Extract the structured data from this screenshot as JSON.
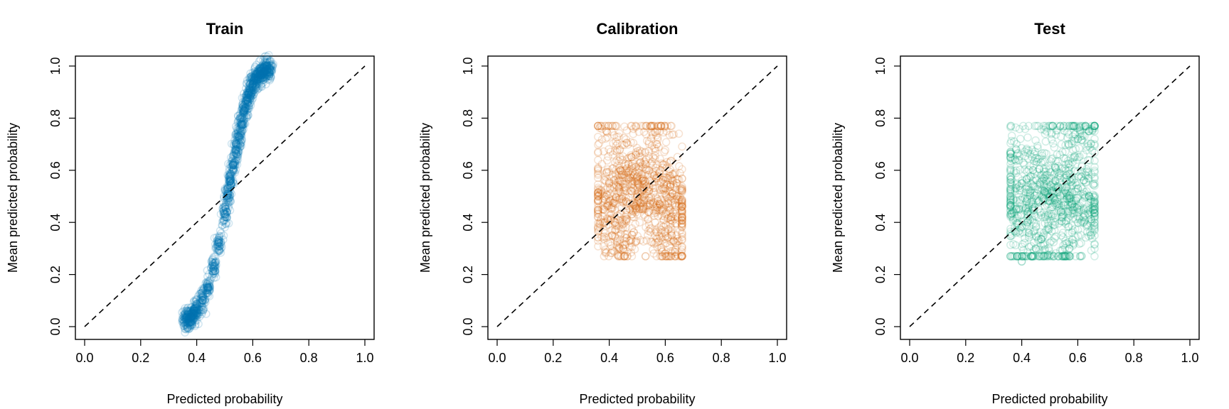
{
  "chart_data": [
    {
      "type": "scatter",
      "title": "Train",
      "xlabel": "Predicted probability",
      "ylabel": "Mean predicted probability",
      "xlim": [
        0.0,
        1.0
      ],
      "ylim": [
        0.0,
        1.0
      ],
      "xticks": [
        "0.0",
        "0.2",
        "0.4",
        "0.6",
        "0.8",
        "1.0"
      ],
      "yticks": [
        "0.0",
        "0.2",
        "0.4",
        "0.6",
        "0.8",
        "1.0"
      ],
      "color": "#0072B2",
      "reference_line": {
        "style": "dashed",
        "from": [
          0.0,
          0.0
        ],
        "to": [
          1.0,
          1.0
        ]
      },
      "series": [
        {
          "x": [
            0.36,
            0.37,
            0.38,
            0.39,
            0.4,
            0.42,
            0.44,
            0.46,
            0.48,
            0.5,
            0.51,
            0.52,
            0.53,
            0.54,
            0.55,
            0.56,
            0.57,
            0.58,
            0.59,
            0.6,
            0.61,
            0.62,
            0.63,
            0.64,
            0.65,
            0.66
          ],
          "y": [
            0.03,
            0.02,
            0.04,
            0.05,
            0.07,
            0.1,
            0.15,
            0.22,
            0.32,
            0.43,
            0.5,
            0.56,
            0.62,
            0.68,
            0.73,
            0.78,
            0.83,
            0.87,
            0.9,
            0.93,
            0.95,
            0.96,
            0.97,
            0.98,
            0.985,
            0.99
          ]
        }
      ]
    },
    {
      "type": "scatter",
      "title": "Calibration",
      "xlabel": "Predicted probability",
      "ylabel": "Mean predicted probability",
      "xlim": [
        0.0,
        1.0
      ],
      "ylim": [
        0.0,
        1.0
      ],
      "xticks": [
        "0.0",
        "0.2",
        "0.4",
        "0.6",
        "0.8",
        "1.0"
      ],
      "yticks": [
        "0.0",
        "0.2",
        "0.4",
        "0.6",
        "0.8",
        "1.0"
      ],
      "color": "#D55E00",
      "reference_line": {
        "style": "dashed",
        "from": [
          0.0,
          0.0
        ],
        "to": [
          1.0,
          1.0
        ]
      },
      "series": [
        {
          "x": [
            0.36,
            0.38,
            0.4,
            0.42,
            0.44,
            0.46,
            0.48,
            0.5,
            0.52,
            0.54,
            0.56,
            0.58,
            0.6,
            0.62,
            0.64,
            0.66,
            0.39,
            0.55,
            0.45,
            0.6,
            0.41,
            0.57,
            0.63,
            0.48
          ],
          "y": [
            0.5,
            0.45,
            0.55,
            0.4,
            0.6,
            0.48,
            0.52,
            0.5,
            0.56,
            0.44,
            0.58,
            0.47,
            0.53,
            0.42,
            0.5,
            0.46,
            0.75,
            0.77,
            0.3,
            0.28,
            0.35,
            0.7,
            0.33,
            0.65
          ]
        }
      ]
    },
    {
      "type": "scatter",
      "title": "Test",
      "xlabel": "Predicted probability",
      "ylabel": "Mean predicted probability",
      "xlim": [
        0.0,
        1.0
      ],
      "ylim": [
        0.0,
        1.0
      ],
      "xticks": [
        "0.0",
        "0.2",
        "0.4",
        "0.6",
        "0.8",
        "1.0"
      ],
      "yticks": [
        "0.0",
        "0.2",
        "0.4",
        "0.6",
        "0.8",
        "1.0"
      ],
      "color": "#009E73",
      "reference_line": {
        "style": "dashed",
        "from": [
          0.0,
          0.0
        ],
        "to": [
          1.0,
          1.0
        ]
      },
      "series": [
        {
          "x": [
            0.36,
            0.38,
            0.4,
            0.42,
            0.44,
            0.46,
            0.48,
            0.5,
            0.52,
            0.54,
            0.56,
            0.58,
            0.6,
            0.62,
            0.64,
            0.66,
            0.4,
            0.51,
            0.45,
            0.6,
            0.64,
            0.57,
            0.38,
            0.53
          ],
          "y": [
            0.5,
            0.45,
            0.55,
            0.4,
            0.6,
            0.48,
            0.52,
            0.5,
            0.56,
            0.44,
            0.58,
            0.47,
            0.53,
            0.42,
            0.5,
            0.46,
            0.25,
            0.77,
            0.3,
            0.72,
            0.75,
            0.3,
            0.68,
            0.27
          ]
        }
      ]
    }
  ]
}
